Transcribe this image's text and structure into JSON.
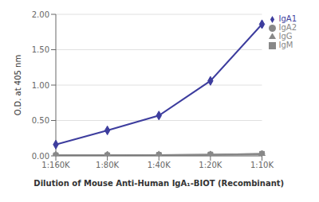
{
  "chart_data": {
    "type": "line",
    "categories": [
      "1:160K",
      "1:80K",
      "1:40K",
      "1:20K",
      "1:10K"
    ],
    "series": [
      {
        "name": "IgA1",
        "color": "#3d3d9e",
        "marker": "diamond",
        "values": [
          0.16,
          0.36,
          0.57,
          1.06,
          1.86
        ]
      },
      {
        "name": "IgA2",
        "color": "#888888",
        "marker": "circle",
        "values": [
          0.01,
          0.01,
          0.015,
          0.02,
          0.03
        ]
      },
      {
        "name": "IgG",
        "color": "#888888",
        "marker": "triangle",
        "values": [
          0.005,
          0.008,
          0.01,
          0.01,
          0.02
        ]
      },
      {
        "name": "IgM",
        "color": "#888888",
        "marker": "square",
        "values": [
          0.01,
          0.01,
          0.015,
          0.02,
          0.03
        ]
      }
    ],
    "xlabel": "Dilution of Mouse Anti-Human IgA₁-BIOT (Recombinant)",
    "ylabel": "O.D. at 405 nm",
    "ylim": [
      0.0,
      2.0
    ],
    "yticks": [
      {
        "value": 0.0,
        "label": "0.00"
      },
      {
        "value": 0.5,
        "label": "0.50"
      },
      {
        "value": 1.0,
        "label": "1.00"
      },
      {
        "value": 1.5,
        "label": "1.50"
      },
      {
        "value": 2.0,
        "label": "2.00"
      }
    ],
    "grid": true,
    "legend": "right"
  }
}
